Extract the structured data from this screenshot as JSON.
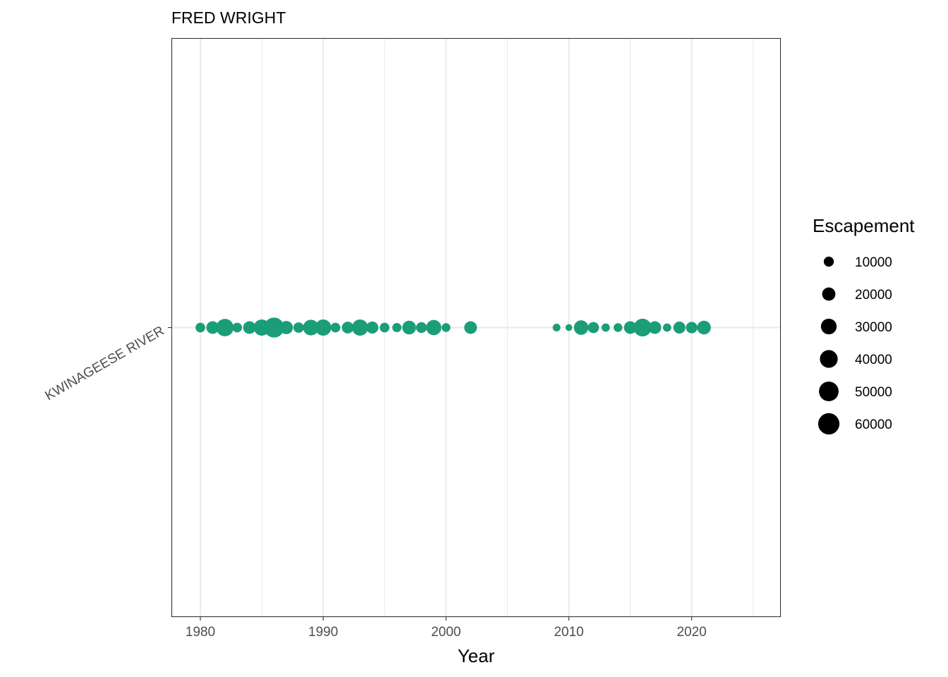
{
  "chart_data": {
    "type": "scatter",
    "title": "FRED WRIGHT",
    "xlabel": "Year",
    "ylabel": "",
    "xlim": [
      1977.7,
      2027.2
    ],
    "x_ticks": [
      1980,
      1990,
      2000,
      2010,
      2020
    ],
    "x_minor_ticks": [
      1985,
      1995,
      2005,
      2015,
      2025
    ],
    "categories": [
      "KWINAGEESE RIVER"
    ],
    "grid": true,
    "point_color": "#1B9E77",
    "series": [
      {
        "category": "KWINAGEESE RIVER",
        "points": [
          {
            "x": 1980,
            "escapement": 9000
          },
          {
            "x": 1981,
            "escapement": 18000
          },
          {
            "x": 1982,
            "escapement": 38000
          },
          {
            "x": 1983,
            "escapement": 9000
          },
          {
            "x": 1984,
            "escapement": 18000
          },
          {
            "x": 1985,
            "escapement": 32000
          },
          {
            "x": 1986,
            "escapement": 52000
          },
          {
            "x": 1987,
            "escapement": 20000
          },
          {
            "x": 1988,
            "escapement": 11000
          },
          {
            "x": 1989,
            "escapement": 30000
          },
          {
            "x": 1990,
            "escapement": 32000
          },
          {
            "x": 1991,
            "escapement": 9000
          },
          {
            "x": 1992,
            "escapement": 15000
          },
          {
            "x": 1993,
            "escapement": 32000
          },
          {
            "x": 1994,
            "escapement": 16000
          },
          {
            "x": 1995,
            "escapement": 9000
          },
          {
            "x": 1996,
            "escapement": 8000
          },
          {
            "x": 1997,
            "escapement": 22000
          },
          {
            "x": 1998,
            "escapement": 12000
          },
          {
            "x": 1999,
            "escapement": 28000
          },
          {
            "x": 2000,
            "escapement": 7000
          },
          {
            "x": 2002,
            "escapement": 18000
          },
          {
            "x": 2009,
            "escapement": 5000
          },
          {
            "x": 2010,
            "escapement": 3500
          },
          {
            "x": 2011,
            "escapement": 25000
          },
          {
            "x": 2012,
            "escapement": 13000
          },
          {
            "x": 2013,
            "escapement": 6000
          },
          {
            "x": 2014,
            "escapement": 7000
          },
          {
            "x": 2015,
            "escapement": 18000
          },
          {
            "x": 2016,
            "escapement": 40000
          },
          {
            "x": 2017,
            "escapement": 18000
          },
          {
            "x": 2018,
            "escapement": 6000
          },
          {
            "x": 2019,
            "escapement": 16000
          },
          {
            "x": 2020,
            "escapement": 14000
          },
          {
            "x": 2021,
            "escapement": 22000
          }
        ]
      }
    ],
    "legend": {
      "title": "Escapement",
      "position": "right",
      "color": "#000000",
      "entries": [
        {
          "label": "10000",
          "value": 10000
        },
        {
          "label": "20000",
          "value": 20000
        },
        {
          "label": "30000",
          "value": 30000
        },
        {
          "label": "40000",
          "value": 40000
        },
        {
          "label": "50000",
          "value": 50000
        },
        {
          "label": "60000",
          "value": 60000
        }
      ]
    }
  }
}
